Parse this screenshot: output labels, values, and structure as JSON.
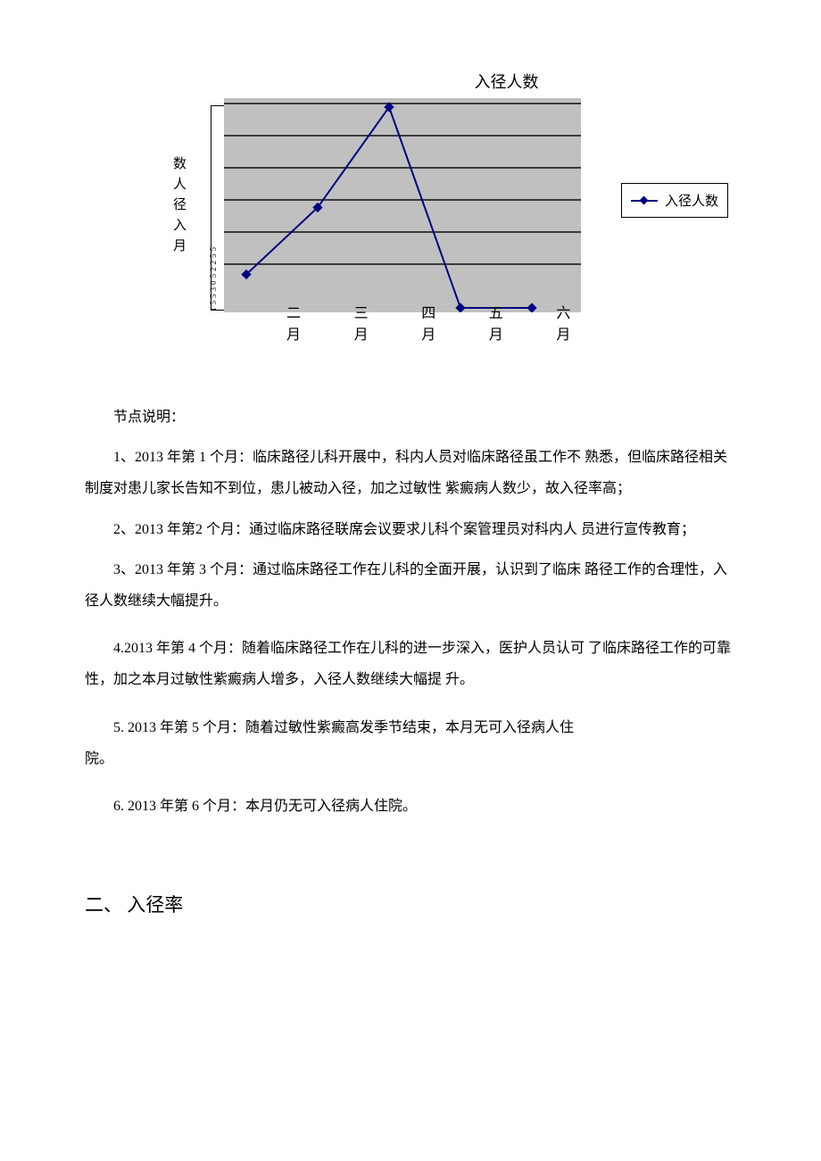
{
  "chart": {
    "type": "line",
    "title": "入径人数",
    "y_label": "数人径入月",
    "y_ticks_raw": "1553052255",
    "series_name": "入径人数",
    "categories": [
      "二月",
      "三月",
      "四月",
      "五月",
      "六月"
    ],
    "values_estimated": [
      1,
      3,
      6,
      0,
      0
    ],
    "ylim": [
      0,
      6
    ],
    "grid_positions_pct": [
      2,
      17,
      32,
      47,
      62,
      77
    ],
    "line_color": "#000080",
    "marker_color": "#000080",
    "marker_shape": "diamond",
    "plot_bg": "#c0c0c0",
    "grid_color": "#3a3a3a",
    "page_bg": "#ffffff",
    "text_color": "#000000"
  },
  "body": {
    "intro": "节点说明：",
    "p1": "1、2013 年第  1 个月：临床路径儿科开展中，科内人员对临床路径虽工作不 熟悉，但临床路径相关制度对患儿家长告知不到位，患儿被动入径，加之过敏性  紫癜病人数少，故入径率高；",
    "p2": "2、2013 年第2 个月：通过临床路径联席会议要求儿科个案管理员对科内人 员进行宣传教育；",
    "p3": "3、2013 年第  3 个月：通过临床路径工作在儿科的全面开展，认识到了临床 路径工作的合理性，入径人数继续大幅提升。",
    "p4": "4.2013 年第  4 个月：随着临床路径工作在儿科的进一步深入，医护人员认可 了临床路径工作的可靠性，加之本月过敏性紫癜病人增多，入径人数继续大幅提 升。",
    "p5a": "5.  2013 年第  5 个月：随着过敏性紫癜高发季节结束，本月无可入径病人住",
    "p5b": "院。",
    "p6": "6.  2013 年第  6 个月：本月仍无可入径病人住院。",
    "section2": "二、 入径率"
  }
}
